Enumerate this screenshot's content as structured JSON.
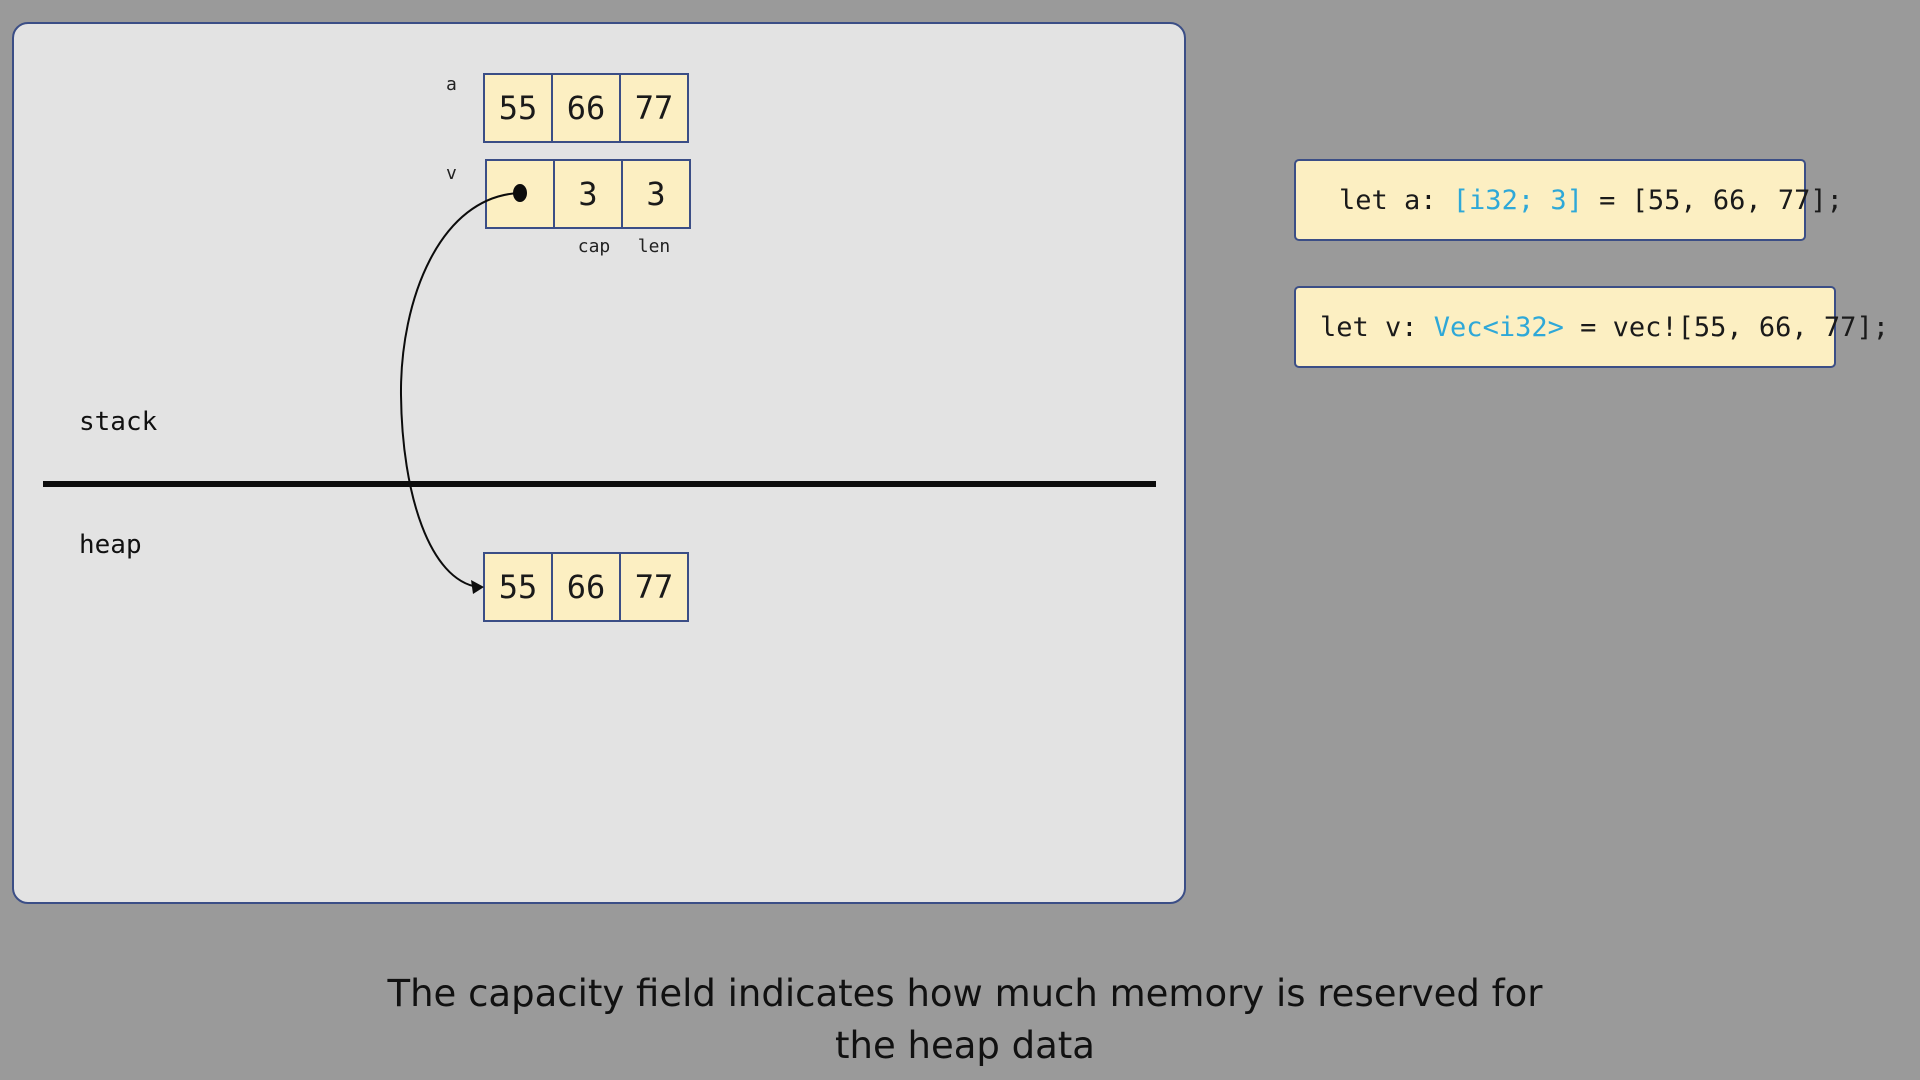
{
  "diagram": {
    "array_a": {
      "label": "a",
      "values": [
        "55",
        "66",
        "77"
      ]
    },
    "vec_v": {
      "label": "v",
      "cap_value": "3",
      "len_value": "3",
      "cap_label": "cap",
      "len_label": "len"
    },
    "heap_array": {
      "values": [
        "55",
        "66",
        "77"
      ]
    },
    "stack_label": "stack",
    "heap_label": "heap"
  },
  "code": {
    "line1": {
      "prefix": "let a: ",
      "type": "[i32; 3]",
      "suffix": " = [55, 66, 77];"
    },
    "line2": {
      "prefix": "let v: ",
      "type": "Vec<i32>",
      "suffix": " = vec![55, 66, 77];"
    }
  },
  "caption": {
    "line1": "The capacity field indicates how much memory is reserved for",
    "line2": "the heap data"
  },
  "colors": {
    "background": "#9a9a9a",
    "panel": "#e3e3e3",
    "cell_fill": "#fcefc2",
    "border": "#3b4e86",
    "type_highlight": "#2ea8d8"
  }
}
